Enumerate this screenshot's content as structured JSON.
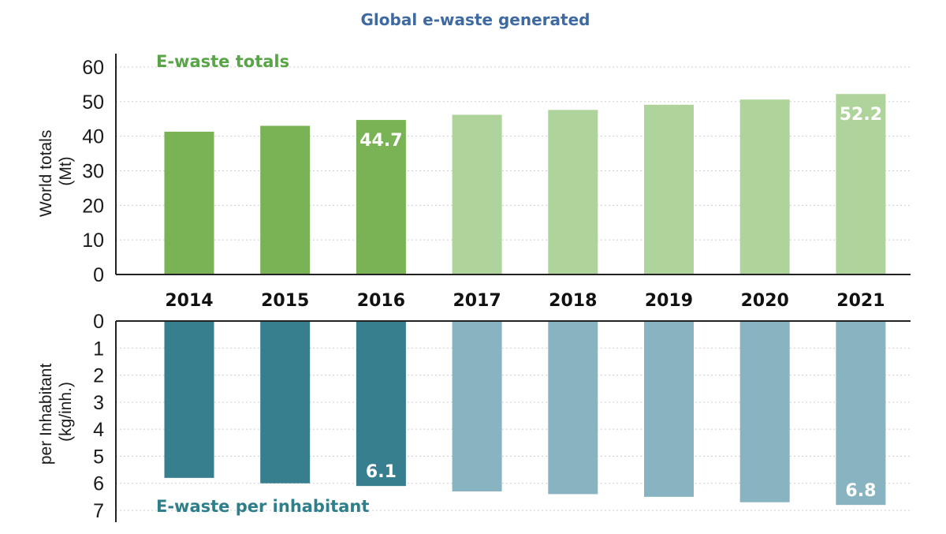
{
  "chart_data": {
    "type": "bar",
    "title": "Global e-waste generated",
    "categories": [
      "2014",
      "2015",
      "2016",
      "2017",
      "2018",
      "2019",
      "2020",
      "2021"
    ],
    "top_panel": {
      "label": "E-waste totals",
      "ylabel_line1": "World totals",
      "ylabel_line2": "(Mt)",
      "ylim": [
        0,
        60
      ],
      "yticks": [
        0,
        10,
        20,
        30,
        40,
        50,
        60
      ],
      "values": [
        41.3,
        43.0,
        44.7,
        46.2,
        47.6,
        49.1,
        50.6,
        52.2
      ],
      "data_labels": [
        {
          "index": 2,
          "text": "44.7"
        },
        {
          "index": 7,
          "text": "52.2"
        }
      ],
      "color_actual": "#7ab356",
      "color_projected": "#afd49b",
      "label_color": "#5aa448"
    },
    "bottom_panel": {
      "label": "E-waste per inhabitant",
      "ylabel_line1": "per Inhabitant",
      "ylabel_line2": "(kg/inh.)",
      "ylim": [
        0,
        7
      ],
      "inverted": true,
      "yticks": [
        0,
        1,
        2,
        3,
        4,
        5,
        6,
        7
      ],
      "values": [
        5.8,
        6.0,
        6.1,
        6.3,
        6.4,
        6.5,
        6.7,
        6.8
      ],
      "data_labels": [
        {
          "index": 2,
          "text": "6.1"
        },
        {
          "index": 7,
          "text": "6.8"
        }
      ],
      "color_actual": "#377e8e",
      "color_projected": "#88b3c0",
      "label_color": "#2f7f8a"
    },
    "actual_count": 3,
    "title_color": "#3f6aa1",
    "grid": true
  }
}
